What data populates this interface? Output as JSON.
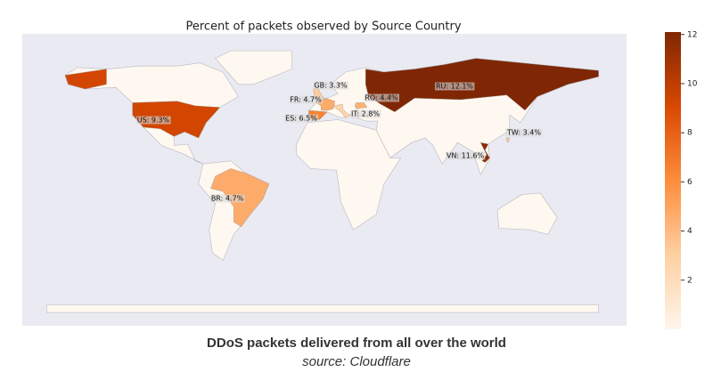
{
  "chart_data": {
    "type": "choropleth",
    "title": "Percent of packets observed by Source Country",
    "values": [
      12.1,
      11.6,
      9.3,
      6.5,
      4.7,
      4.7,
      4.4,
      3.4,
      3.3,
      2.8
    ],
    "value_labels": [
      "RU: 12.1%",
      "VN: 11.6%",
      "US: 9.3%",
      "ES: 6.5%",
      "FR: 4.7%",
      "BR: 4.7%",
      "RO: 4.4%",
      "TW: 3.4%",
      "GB: 3.3%",
      "IT: 2.8%"
    ],
    "colormap": "Oranges",
    "clim": [
      0,
      12.1
    ],
    "cticks": [
      2,
      4,
      6,
      8,
      10,
      12
    ]
  },
  "caption": {
    "title": "DDoS packets delivered from all over the world",
    "source": "source: Cloudflare"
  }
}
